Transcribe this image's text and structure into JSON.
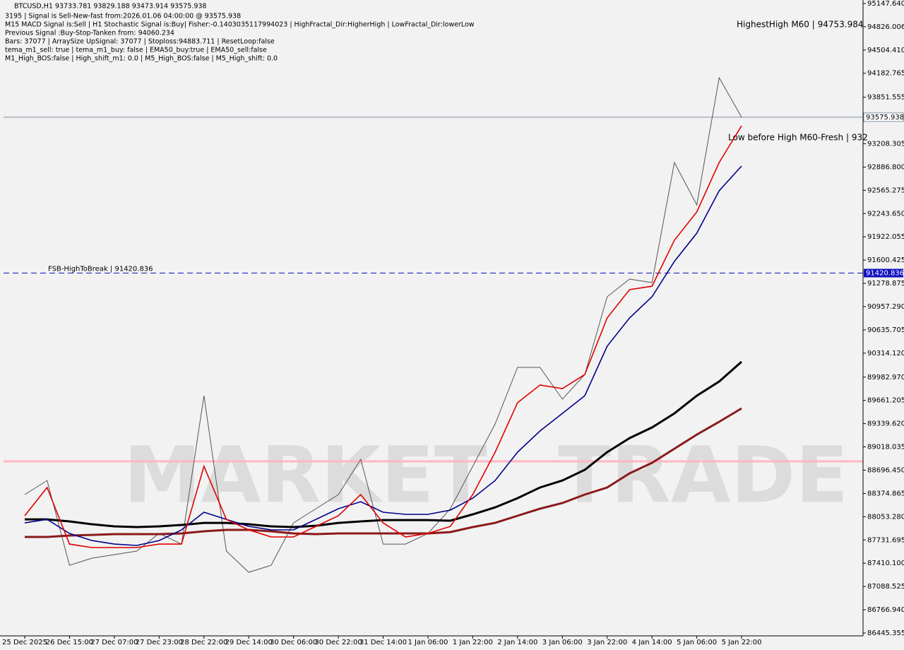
{
  "chart_data": {
    "type": "line",
    "title": "BTCUSD,H1  93733.781 93829.188 93473.914 93575.938",
    "info_lines": [
      "3195 | Signal is Sell-New-fast from:2026.01.06 04:00:00 @ 93575.938",
      "M15 MACD Signal is:Sell | H1 Stochastic Signal is:Buy| Fisher:-0.1403035117994023 | HighFractal_Dir:HigherHigh | LowFractal_Dir:lowerLow",
      "Previous Signal :Buy-Stop-Tanken from: 94060.234",
      "Bars: 37077 | ArraySize UpSignal: 37077 | Stoploss:94883.711 | ResetLoop:false",
      "tema_m1_sell: true | tema_m1_buy: false | EMA50_buy:true | EMA50_sell:false",
      "M1_High_BOS:false | High_shift_m1: 0.0 | M5_High_BOS:false | M5_High_shift: 0.0"
    ],
    "annotations": [
      "HighestHigh   M60 | 94753.984",
      "Low before High   M60-Fresh | 932"
    ],
    "watermark": [
      "MARKET",
      "TRADE"
    ],
    "fsb_label": "FSB-HighToBreak | 91420.836",
    "fsb_level": 91420.836,
    "price_line": 93575.938,
    "categories": [
      "25 Dec 2025",
      null,
      "26 Dec 15:00",
      null,
      "27 Dec 07:00",
      null,
      "27 Dec 23:00",
      null,
      "28 Dec 22:00",
      null,
      "29 Dec 14:00",
      null,
      "30 Dec 06:00",
      null,
      "30 Dec 22:00",
      null,
      "31 Dec 14:00",
      null,
      "1 Jan 06:00",
      null,
      "1 Jan 22:00",
      null,
      "2 Jan 14:00",
      null,
      "3 Jan 06:00",
      null,
      "3 Jan 22:00",
      null,
      "4 Jan 14:00",
      null,
      "5 Jan 06:00",
      null,
      "5 Jan 22:00"
    ],
    "series": [
      {
        "color": "#555555",
        "values": [
          88359,
          88554,
          87382,
          87480,
          87529,
          87578,
          87822,
          87675,
          89726,
          87578,
          87285,
          87382,
          87968,
          88164,
          88359,
          88847,
          87675,
          87675,
          87822,
          88164,
          88750,
          89336,
          90117,
          90117,
          89678,
          90019,
          91094,
          91338,
          91289,
          92950,
          92364,
          94122,
          93576
        ]
      },
      {
        "color": "#8b1a1a",
        "values": [
          87773,
          87773,
          87793,
          87802,
          87812,
          87812,
          87812,
          87822,
          87851,
          87871,
          87871,
          87851,
          87822,
          87812,
          87822,
          87822,
          87822,
          87822,
          87822,
          87841,
          87910,
          87968,
          88066,
          88164,
          88242,
          88359,
          88457,
          88652,
          88798,
          88993,
          89189,
          89365,
          89551
        ]
      },
      {
        "color": "#000000",
        "values": [
          88017,
          88017,
          87988,
          87949,
          87920,
          87910,
          87920,
          87939,
          87968,
          87968,
          87949,
          87920,
          87910,
          87929,
          87968,
          87988,
          88007,
          88007,
          88007,
          87998,
          88086,
          88183,
          88310,
          88457,
          88554,
          88701,
          88945,
          89140,
          89287,
          89482,
          89726,
          89922,
          90195
        ]
      },
      {
        "color": "#00008b",
        "values": [
          87968,
          88017,
          87822,
          87724,
          87675,
          87656,
          87724,
          87871,
          88115,
          88017,
          87920,
          87871,
          87871,
          88017,
          88164,
          88261,
          88115,
          88086,
          88086,
          88144,
          88310,
          88554,
          88945,
          89238,
          89482,
          89726,
          90410,
          90801,
          91094,
          91582,
          91973,
          92559,
          92901
        ]
      },
      {
        "color": "#e00000",
        "values": [
          88066,
          88457,
          87675,
          87627,
          87627,
          87627,
          87675,
          87675,
          88750,
          88017,
          87871,
          87773,
          87773,
          87920,
          88066,
          88359,
          87968,
          87773,
          87822,
          87920,
          88359,
          88945,
          89629,
          89873,
          89824,
          90019,
          90801,
          91192,
          91240,
          91875,
          92266,
          92950,
          93457
        ]
      }
    ],
    "ylim": [
      86406,
      95196
    ],
    "yticks": [
      {
        "value": 95147.64,
        "label": "95147.640"
      },
      94826.006,
      {
        "value": 94504.41,
        "label": "94504.410"
      },
      94182.765,
      93851.555,
      93208.305,
      {
        "value": 92886.8,
        "label": "92886.800"
      },
      92565.275,
      {
        "value": 92243.65,
        "label": "92243.650"
      },
      91922.055,
      91600.425,
      91278.875,
      {
        "value": 90957.29,
        "label": "90957.290"
      },
      90635.705,
      {
        "value": 90314.12,
        "label": "90314.120"
      },
      {
        "value": 89982.97,
        "label": "89982.970"
      },
      89661.205,
      {
        "value": 89339.62,
        "label": "89339.620"
      },
      89018.035,
      {
        "value": 88696.45,
        "label": "88696.450"
      },
      88374.865,
      {
        "value": 88053.28,
        "label": "88053.280"
      },
      87731.695,
      {
        "value": 87410.1,
        "label": "87410.100"
      },
      87088.525,
      {
        "value": 86766.94,
        "label": "86766.940"
      },
      86445.355
    ]
  }
}
